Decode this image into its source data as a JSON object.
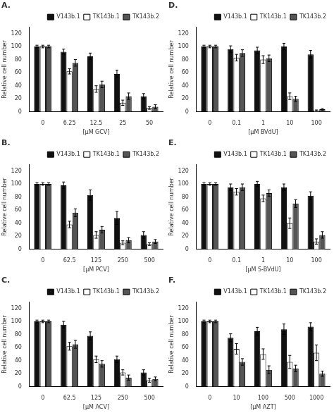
{
  "chart_data": [
    {
      "type": "bar",
      "title": "A.",
      "xlabel": "[μM GCV]",
      "ylabel": "Relative cell number",
      "categories": [
        "0",
        "6.25",
        "12.5",
        "25",
        "50"
      ],
      "series": [
        {
          "name": "V143b.1",
          "color": "#111111",
          "values": [
            100,
            92,
            85,
            58,
            24
          ],
          "errors": [
            2,
            4,
            5,
            6,
            4
          ]
        },
        {
          "name": "TK143b.1",
          "color": "#ffffff",
          "values": [
            100,
            62,
            35,
            14,
            6
          ],
          "errors": [
            2,
            4,
            5,
            4,
            2
          ]
        },
        {
          "name": "TK143b.2",
          "color": "#555555",
          "values": [
            100,
            75,
            42,
            24,
            8
          ],
          "errors": [
            2,
            5,
            5,
            5,
            3
          ]
        }
      ],
      "ylim": [
        0,
        130
      ],
      "yticks": [
        0,
        20,
        40,
        60,
        80,
        100,
        120
      ],
      "grid": false,
      "legend": "top"
    },
    {
      "type": "bar",
      "title": "D.",
      "xlabel": "[μM BVdU]",
      "ylabel": "Relative cell number",
      "categories": [
        "0",
        "0.1",
        "1",
        "10",
        "100"
      ],
      "series": [
        {
          "name": "V143b.1",
          "color": "#111111",
          "values": [
            100,
            96,
            94,
            100,
            88
          ],
          "errors": [
            2,
            5,
            5,
            5,
            6
          ]
        },
        {
          "name": "TK143b.1",
          "color": "#ffffff",
          "values": [
            100,
            83,
            80,
            24,
            2
          ],
          "errors": [
            2,
            5,
            6,
            5,
            1
          ]
        },
        {
          "name": "TK143b.2",
          "color": "#555555",
          "values": [
            100,
            90,
            82,
            20,
            4
          ],
          "errors": [
            2,
            5,
            5,
            4,
            1
          ]
        }
      ],
      "ylim": [
        0,
        130
      ],
      "yticks": [
        0,
        20,
        40,
        60,
        80,
        100,
        120
      ],
      "grid": false,
      "legend": "top"
    },
    {
      "type": "bar",
      "title": "B.",
      "xlabel": "[μM PCV]",
      "ylabel": "Relative cell number",
      "categories": [
        "0",
        "62.5",
        "125",
        "250",
        "500"
      ],
      "series": [
        {
          "name": "V143b.1",
          "color": "#111111",
          "values": [
            100,
            98,
            83,
            48,
            22
          ],
          "errors": [
            2,
            5,
            8,
            10,
            5
          ]
        },
        {
          "name": "TK143b.1",
          "color": "#ffffff",
          "values": [
            100,
            38,
            22,
            10,
            8
          ],
          "errors": [
            2,
            5,
            5,
            3,
            2
          ]
        },
        {
          "name": "TK143b.2",
          "color": "#555555",
          "values": [
            100,
            56,
            30,
            14,
            12
          ],
          "errors": [
            2,
            6,
            5,
            4,
            3
          ]
        }
      ],
      "ylim": [
        0,
        130
      ],
      "yticks": [
        0,
        20,
        40,
        60,
        80,
        100,
        120
      ],
      "grid": false,
      "legend": "top"
    },
    {
      "type": "bar",
      "title": "E.",
      "xlabel": "[μM S-BVdU]",
      "ylabel": "Relative cell number",
      "categories": [
        "0",
        "0.1",
        "1",
        "10",
        "100"
      ],
      "series": [
        {
          "name": "V143b.1",
          "color": "#111111",
          "values": [
            100,
            95,
            100,
            95,
            82
          ],
          "errors": [
            2,
            5,
            4,
            5,
            6
          ]
        },
        {
          "name": "TK143b.1",
          "color": "#ffffff",
          "values": [
            100,
            88,
            78,
            40,
            12
          ],
          "errors": [
            2,
            5,
            5,
            8,
            4
          ]
        },
        {
          "name": "TK143b.2",
          "color": "#555555",
          "values": [
            100,
            95,
            86,
            70,
            22
          ],
          "errors": [
            2,
            5,
            5,
            6,
            5
          ]
        }
      ],
      "ylim": [
        0,
        130
      ],
      "yticks": [
        0,
        20,
        40,
        60,
        80,
        100,
        120
      ],
      "grid": false,
      "legend": "top"
    },
    {
      "type": "bar",
      "title": "C.",
      "xlabel": "[μM ACV]",
      "ylabel": "Relative cell number",
      "categories": [
        "0",
        "62.5",
        "125",
        "250",
        "500"
      ],
      "series": [
        {
          "name": "V143b.1",
          "color": "#111111",
          "values": [
            100,
            95,
            78,
            42,
            22
          ],
          "errors": [
            2,
            5,
            6,
            5,
            4
          ]
        },
        {
          "name": "TK143b.1",
          "color": "#ffffff",
          "values": [
            100,
            62,
            42,
            22,
            10
          ],
          "errors": [
            2,
            6,
            5,
            4,
            3
          ]
        },
        {
          "name": "TK143b.2",
          "color": "#555555",
          "values": [
            100,
            65,
            35,
            14,
            12
          ],
          "errors": [
            2,
            6,
            5,
            4,
            3
          ]
        }
      ],
      "ylim": [
        0,
        130
      ],
      "yticks": [
        0,
        20,
        40,
        60,
        80,
        100,
        120
      ],
      "grid": false,
      "legend": "top"
    },
    {
      "type": "bar",
      "title": "F.",
      "xlabel": "[μM AZT]",
      "ylabel": "Relative cell number",
      "categories": [
        "0",
        "10",
        "100",
        "500",
        "1000"
      ],
      "series": [
        {
          "name": "V143b.1",
          "color": "#111111",
          "values": [
            100,
            75,
            85,
            88,
            92
          ],
          "errors": [
            2,
            6,
            6,
            8,
            6
          ]
        },
        {
          "name": "TK143b.1",
          "color": "#ffffff",
          "values": [
            100,
            58,
            50,
            38,
            52
          ],
          "errors": [
            2,
            8,
            8,
            10,
            12
          ]
        },
        {
          "name": "TK143b.2",
          "color": "#555555",
          "values": [
            100,
            38,
            26,
            28,
            20
          ],
          "errors": [
            2,
            5,
            6,
            5,
            4
          ]
        }
      ],
      "ylim": [
        0,
        130
      ],
      "yticks": [
        0,
        20,
        40,
        60,
        80,
        100,
        120
      ],
      "grid": false,
      "legend": "top"
    }
  ]
}
